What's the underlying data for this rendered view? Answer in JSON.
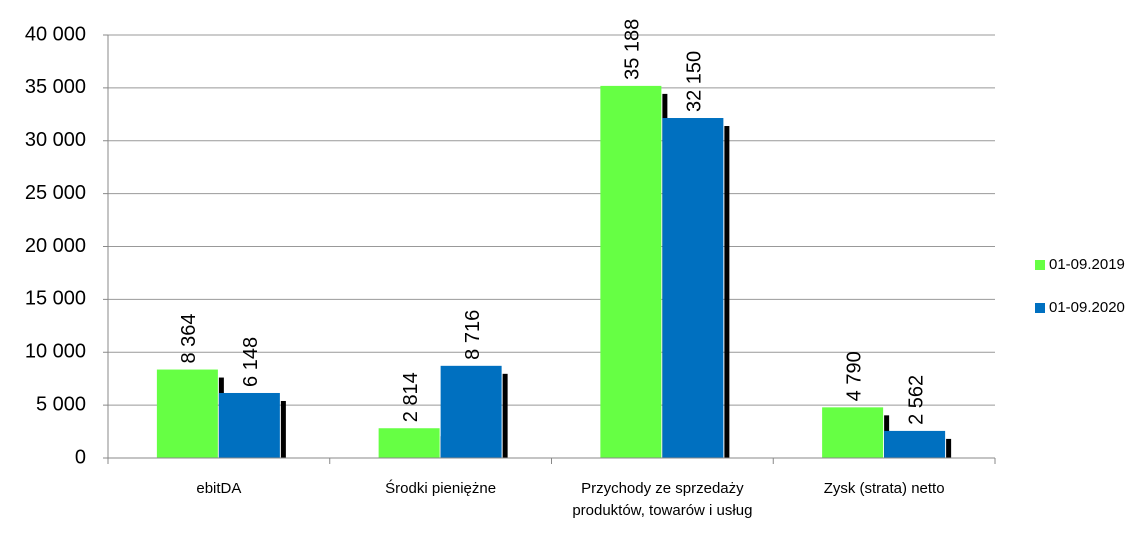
{
  "chart_data": {
    "type": "bar",
    "categories": [
      "ebitDA",
      "Środki pieniężne",
      "Przychody ze sprzedaży produktów, towarów i usług",
      "Zysk (strata) netto"
    ],
    "series": [
      {
        "name": "01-09.2019",
        "color": "#66ff44",
        "values": [
          8364,
          2814,
          35188,
          4790
        ],
        "value_labels": [
          "8 364",
          "2 814",
          "35 188",
          "4 790"
        ]
      },
      {
        "name": "01-09.2020",
        "color": "#0070c0",
        "values": [
          6148,
          8716,
          32150,
          2562
        ],
        "value_labels": [
          "6 148",
          "8 716",
          "32 150",
          "2 562"
        ]
      }
    ],
    "ylim": [
      0,
      40000
    ],
    "yticks": [
      {
        "value": 0,
        "label": "0"
      },
      {
        "value": 5000,
        "label": "5 000"
      },
      {
        "value": 10000,
        "label": "10 000"
      },
      {
        "value": 15000,
        "label": "15 000"
      },
      {
        "value": 20000,
        "label": "20 000"
      },
      {
        "value": 25000,
        "label": "25 000"
      },
      {
        "value": 30000,
        "label": "30 000"
      },
      {
        "value": 35000,
        "label": "35 000"
      },
      {
        "value": 40000,
        "label": "40 000"
      }
    ],
    "grid": true,
    "legend": "right"
  }
}
